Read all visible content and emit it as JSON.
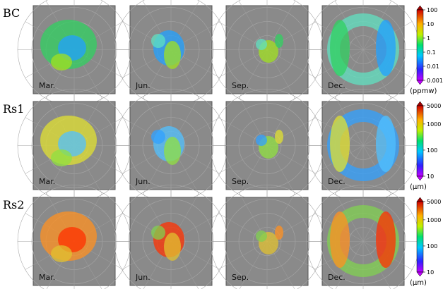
{
  "rows": [
    {
      "label": "BC",
      "panels": [
        "Mar.",
        "Jun.",
        "Sep.",
        "Dec."
      ],
      "colorbar": {
        "lim": [
          0.001,
          100
        ],
        "ticks": [
          100,
          10,
          1,
          0.1,
          0.01,
          0.001
        ],
        "log": true,
        "unit": "(ppmw)"
      }
    },
    {
      "label": "Rs1",
      "panels": [
        "Mar.",
        "Jun.",
        "Sep.",
        "Dec."
      ],
      "colorbar": {
        "lim": [
          10,
          5000
        ],
        "ticks": [
          5000,
          1000,
          100,
          10
        ],
        "log": true,
        "unit": "(µm)"
      }
    },
    {
      "label": "Rs2",
      "panels": [
        "Mar.",
        "Jun.",
        "Sep.",
        "Dec."
      ],
      "colorbar": {
        "lim": [
          10,
          5000
        ],
        "ticks": [
          5000,
          1000,
          100,
          10
        ],
        "log": true,
        "unit": "(µm)"
      }
    }
  ]
}
